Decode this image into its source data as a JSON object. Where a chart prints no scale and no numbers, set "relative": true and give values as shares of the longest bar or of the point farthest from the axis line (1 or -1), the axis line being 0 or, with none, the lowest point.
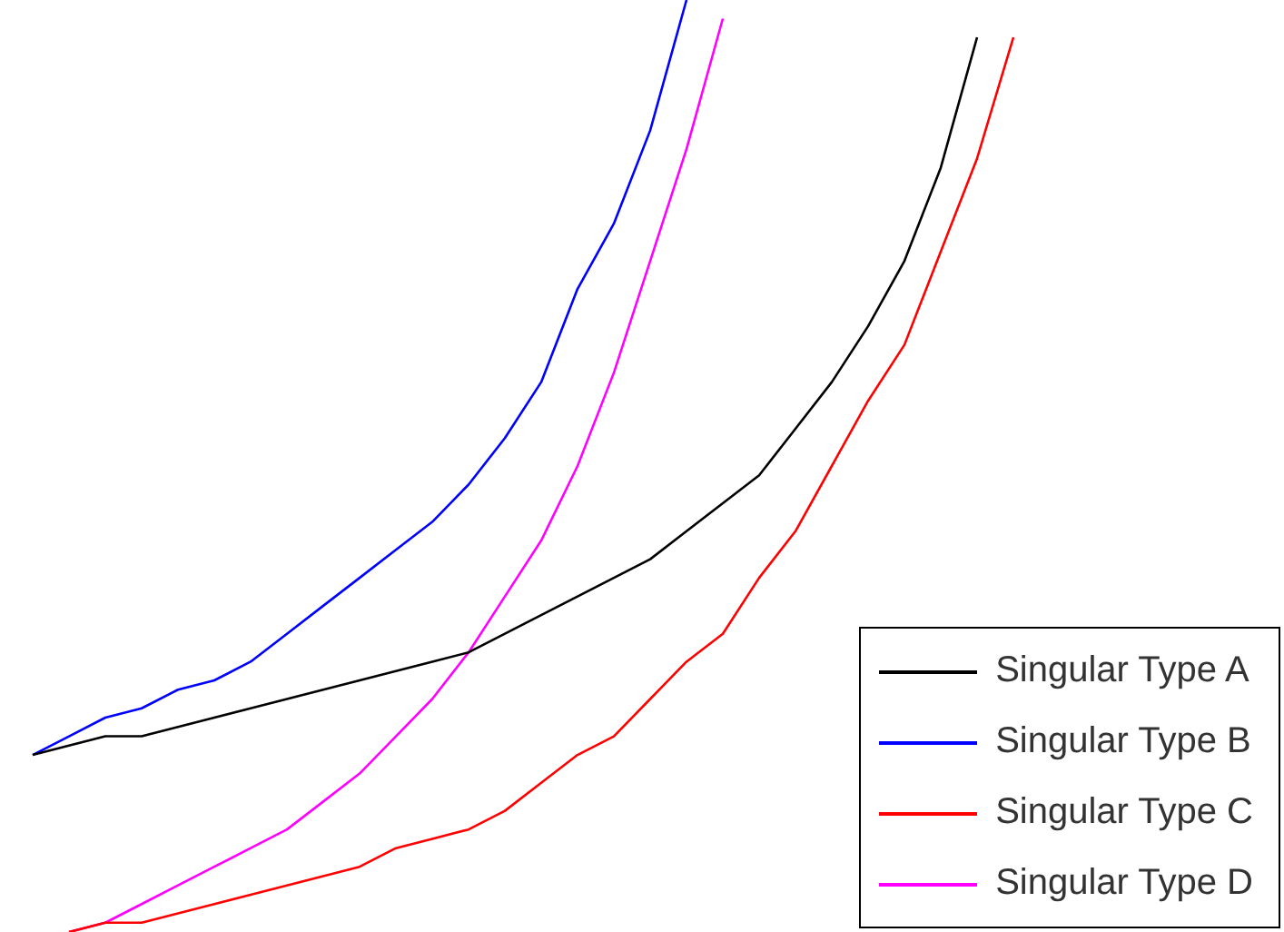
{
  "chart_data": {
    "type": "line",
    "relative": true,
    "legend": "bottom right",
    "marker": "none",
    "line_style": "solid",
    "categories": [
      null,
      null,
      null,
      null,
      null,
      null,
      null,
      null,
      null,
      null,
      null,
      null,
      null,
      null,
      null,
      null,
      null,
      null,
      null,
      null,
      null,
      null,
      null,
      null,
      null,
      null,
      null,
      null,
      null
    ],
    "series": [
      {
        "name": "Singular Type A",
        "color": "#000000",
        "values": [
          0.19,
          0.2,
          0.21,
          0.21,
          0.22,
          0.23,
          0.24,
          0.25,
          0.26,
          0.27,
          0.28,
          0.29,
          0.3,
          0.32,
          0.34,
          0.36,
          0.38,
          0.4,
          0.43,
          0.46,
          0.49,
          0.54,
          0.59,
          0.65,
          0.72,
          0.82,
          0.96,
          null,
          null
        ]
      },
      {
        "name": "Singular Type B",
        "color": "#0000ff",
        "values": [
          0.19,
          0.21,
          0.23,
          0.24,
          0.26,
          0.27,
          0.29,
          0.32,
          0.35,
          0.38,
          0.41,
          0.44,
          0.48,
          0.53,
          0.59,
          0.69,
          0.76,
          0.86,
          1.0,
          null,
          null,
          null,
          null,
          null,
          null,
          null,
          null,
          null,
          null
        ]
      },
      {
        "name": "Singular Type C",
        "color": "#ff0000",
        "values": [
          null,
          0.0,
          0.01,
          0.01,
          0.02,
          0.03,
          0.04,
          0.05,
          0.06,
          0.07,
          0.09,
          0.1,
          0.11,
          0.13,
          0.16,
          0.19,
          0.21,
          0.25,
          0.29,
          0.32,
          0.38,
          0.43,
          0.5,
          0.57,
          0.63,
          0.73,
          0.83,
          0.96,
          null
        ]
      },
      {
        "name": "Singular Type D",
        "color": "#ff00ff",
        "values": [
          null,
          0.0,
          0.01,
          0.03,
          0.05,
          0.07,
          0.09,
          0.11,
          0.14,
          0.17,
          0.21,
          0.25,
          0.3,
          0.36,
          0.42,
          0.5,
          0.6,
          0.72,
          0.84,
          0.98,
          null,
          null,
          null,
          null,
          null,
          null,
          null,
          null,
          null
        ]
      }
    ]
  }
}
